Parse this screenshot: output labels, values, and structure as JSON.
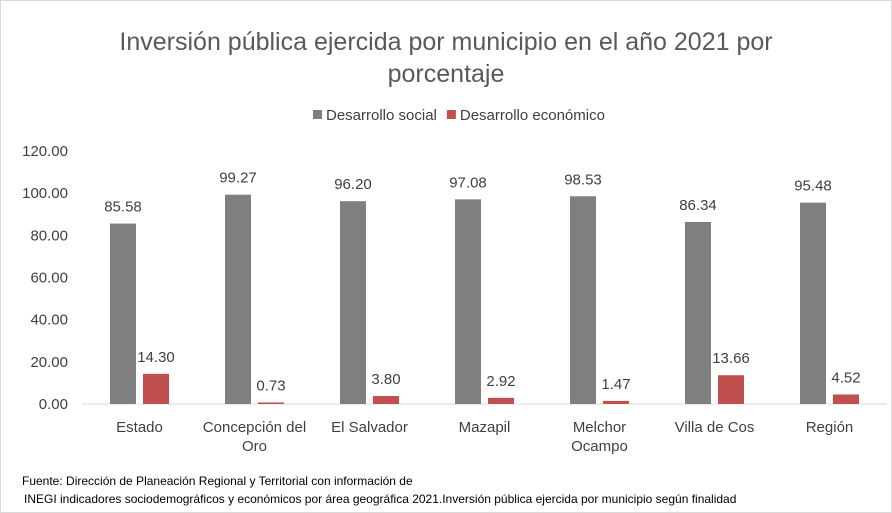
{
  "chart_data": {
    "type": "bar",
    "title": "Inversión pública ejercida por municipio en el año 2021 por porcentaje",
    "categories": [
      "Estado",
      "Concepción del Oro",
      "El Salvador",
      "Mazapil",
      "Melchor Ocampo",
      "Villa de Cos",
      "Región"
    ],
    "series": [
      {
        "name": "Desarrollo social",
        "color": "#7f7f7f",
        "values": [
          85.58,
          99.27,
          96.2,
          97.08,
          98.53,
          86.34,
          95.48
        ],
        "value_labels": [
          "85.58",
          "99.27",
          "96.20",
          "97.08",
          "98.53",
          "86.34",
          "95.48"
        ]
      },
      {
        "name": "Desarrollo económico",
        "color": "#c0504d",
        "values": [
          14.3,
          0.73,
          3.8,
          2.92,
          1.47,
          13.66,
          4.52
        ],
        "value_labels": [
          "14.30",
          "0.73",
          "3.80",
          "2.92",
          "1.47",
          "13.66",
          "4.52"
        ]
      }
    ],
    "ylim": [
      0,
      120
    ],
    "yticks": [
      {
        "value": 0,
        "label": "0.00"
      },
      {
        "value": 20,
        "label": "20.00"
      },
      {
        "value": 40,
        "label": "40.00"
      },
      {
        "value": 60,
        "label": "60.00"
      },
      {
        "value": 80,
        "label": "80.00"
      },
      {
        "value": 100,
        "label": "100.00"
      },
      {
        "value": 120,
        "label": "120.00"
      }
    ],
    "grid": false,
    "legend": "top",
    "notes": [
      "Fuente: Dirección de Planeación Regional y Territorial con información de",
      "INEGI  indicadores sociodemográficos y económicos por área geográfica 2021.Inversión pública ejercida por municipio según finalidad"
    ]
  }
}
